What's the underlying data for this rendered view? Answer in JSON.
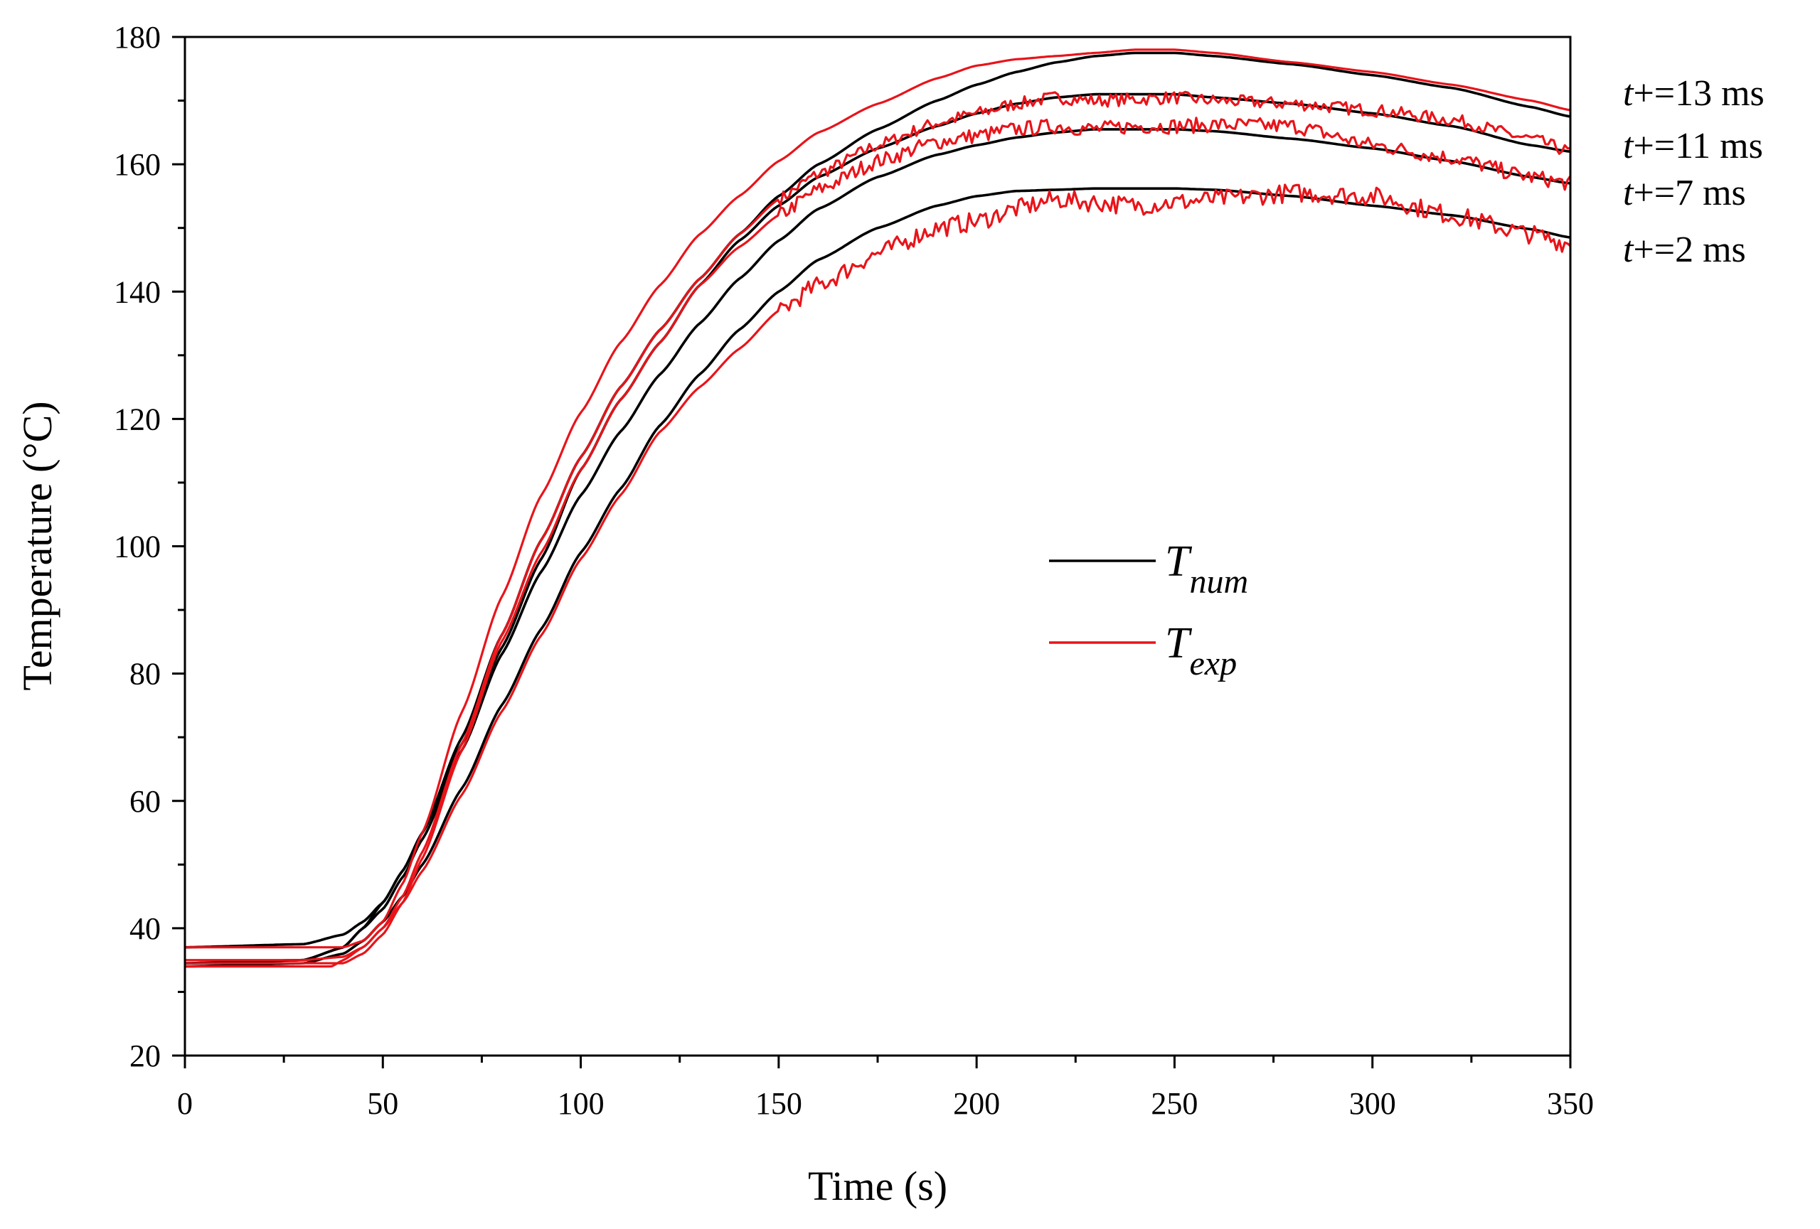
{
  "chart_data": {
    "type": "line",
    "title": "",
    "xlabel": "Time (s)",
    "ylabel": "Temperature (°C)",
    "xlim": [
      0,
      350
    ],
    "ylim": [
      20,
      180
    ],
    "x_ticks": [
      0,
      50,
      100,
      150,
      200,
      250,
      300,
      350
    ],
    "y_ticks": [
      20,
      40,
      60,
      80,
      100,
      120,
      140,
      160,
      180
    ],
    "x_tick_labels": [
      "0",
      "50",
      "100",
      "150",
      "200",
      "250",
      "300",
      "350"
    ],
    "y_tick_labels": [
      "20",
      "40",
      "60",
      "80",
      "100",
      "120",
      "140",
      "160",
      "180"
    ],
    "grid": false,
    "legend": {
      "position": "center-right",
      "entries": [
        {
          "symbol": "T",
          "subscript": "num",
          "color": "#000000"
        },
        {
          "symbol": "T",
          "subscript": "exp",
          "color": "#e8141a"
        }
      ]
    },
    "annotations": [
      {
        "var": "t",
        "text": "+=13 ms"
      },
      {
        "var": "t",
        "text": "+=11 ms"
      },
      {
        "var": "t",
        "text": "+=7 ms"
      },
      {
        "var": "t",
        "text": "+=2 ms"
      }
    ],
    "series": [
      {
        "name": "T_num, t+=13 ms",
        "color": "#000000",
        "noise": 0,
        "x": [
          0,
          30,
          40,
          45,
          50,
          55,
          60,
          70,
          80,
          90,
          100,
          110,
          120,
          130,
          140,
          150,
          160,
          175,
          190,
          200,
          210,
          220,
          230,
          240,
          250,
          260,
          280,
          300,
          320,
          340,
          350
        ],
        "y": [
          37,
          37.5,
          39,
          41,
          44,
          49,
          55,
          70,
          86,
          101,
          114,
          125,
          134,
          142,
          149,
          155,
          160,
          165.5,
          170,
          172.5,
          174.5,
          176,
          177,
          177.5,
          177.5,
          177,
          175.7,
          174,
          172,
          169,
          167.5
        ]
      },
      {
        "name": "T_num, t+=11 ms",
        "color": "#000000",
        "noise": 0,
        "x": [
          0,
          30,
          40,
          45,
          50,
          55,
          60,
          70,
          80,
          90,
          100,
          110,
          120,
          130,
          140,
          150,
          160,
          175,
          190,
          200,
          210,
          220,
          230,
          240,
          250,
          260,
          280,
          300,
          320,
          340,
          350
        ],
        "y": [
          34.5,
          35,
          37,
          40,
          44,
          49,
          55,
          69,
          84,
          98,
          112,
          123,
          132,
          141,
          148,
          153.5,
          158,
          162.5,
          166,
          168,
          169.5,
          170.5,
          171,
          171,
          171,
          170.5,
          169.5,
          168,
          166,
          163,
          162
        ]
      },
      {
        "name": "T_num, t+=7 ms",
        "color": "#000000",
        "noise": 0,
        "x": [
          0,
          30,
          40,
          45,
          50,
          55,
          60,
          70,
          80,
          90,
          100,
          110,
          120,
          130,
          140,
          150,
          160,
          175,
          190,
          200,
          210,
          220,
          230,
          240,
          250,
          260,
          280,
          300,
          320,
          340,
          350
        ],
        "y": [
          34.5,
          35,
          37,
          40,
          43,
          48,
          54,
          68,
          83,
          96,
          108,
          118,
          127,
          135,
          142,
          148,
          153,
          158,
          161.5,
          163,
          164.2,
          165,
          165.5,
          165.5,
          165.5,
          165.2,
          164,
          162.5,
          160.5,
          158,
          157
        ]
      },
      {
        "name": "T_num, t+=2 ms",
        "color": "#000000",
        "noise": 0,
        "x": [
          0,
          30,
          40,
          45,
          50,
          55,
          60,
          70,
          80,
          90,
          100,
          110,
          120,
          130,
          140,
          150,
          160,
          175,
          190,
          200,
          210,
          220,
          230,
          240,
          250,
          260,
          280,
          300,
          320,
          340,
          350
        ],
        "y": [
          34,
          34.5,
          36,
          38,
          41,
          45,
          50,
          62,
          75,
          87,
          99,
          109,
          119,
          127,
          134,
          140,
          145,
          150,
          153.5,
          155,
          155.8,
          156,
          156.2,
          156.2,
          156.2,
          156,
          155,
          153.5,
          152,
          149.8,
          148.5
        ]
      },
      {
        "name": "T_exp, t+=13 ms",
        "color": "#e8141a",
        "noise": 0,
        "x": [
          0,
          30,
          40,
          45,
          50,
          55,
          60,
          70,
          80,
          90,
          100,
          110,
          120,
          130,
          140,
          150,
          160,
          175,
          190,
          200,
          210,
          220,
          230,
          240,
          250,
          260,
          280,
          300,
          320,
          340,
          350
        ],
        "y": [
          37,
          37,
          37,
          38,
          41,
          47,
          55,
          74,
          92,
          108,
          121,
          132,
          141,
          149,
          155,
          160.5,
          165,
          169.5,
          173.5,
          175.5,
          176.5,
          177,
          177.5,
          178,
          178,
          177.5,
          176,
          174.5,
          172.5,
          170,
          168.5
        ]
      },
      {
        "name": "T_exp, t+=11 ms",
        "color": "#e8141a",
        "noise": 1,
        "x": [
          0,
          30,
          40,
          45,
          50,
          55,
          60,
          70,
          80,
          90,
          100,
          110,
          120,
          130,
          140,
          150,
          160,
          175,
          190,
          200,
          210,
          220,
          230,
          240,
          250,
          260,
          280,
          300,
          320,
          340,
          350
        ],
        "y": [
          35,
          35,
          35.5,
          37,
          40,
          45,
          52,
          69,
          86,
          101,
          114,
          125,
          134,
          142,
          149,
          154.5,
          158.5,
          163,
          166.5,
          168,
          169.5,
          170.5,
          170,
          170.2,
          170.5,
          170,
          169.5,
          168.5,
          167,
          164,
          162
        ]
      },
      {
        "name": "T_exp, t+=7 ms",
        "color": "#e8141a",
        "noise": 1.2,
        "x": [
          0,
          30,
          40,
          45,
          50,
          55,
          60,
          70,
          80,
          90,
          100,
          110,
          120,
          130,
          140,
          150,
          160,
          175,
          190,
          200,
          210,
          220,
          230,
          240,
          250,
          260,
          280,
          300,
          320,
          340,
          350
        ],
        "y": [
          34.5,
          34.5,
          34.5,
          36,
          39,
          44,
          51,
          68,
          85,
          99,
          112,
          123,
          132,
          141,
          147,
          152,
          156,
          160.5,
          163.5,
          164.5,
          165.5,
          166,
          165.5,
          166,
          166,
          166.2,
          166,
          163,
          161,
          158,
          157
        ]
      },
      {
        "name": "T_exp, t+=2 ms",
        "color": "#e8141a",
        "noise": 1.5,
        "x": [
          0,
          30,
          37,
          40,
          45,
          50,
          55,
          60,
          70,
          80,
          90,
          100,
          110,
          120,
          130,
          140,
          150,
          160,
          175,
          190,
          200,
          210,
          220,
          230,
          240,
          250,
          260,
          280,
          300,
          320,
          340,
          350
        ],
        "y": [
          34,
          34,
          34,
          35,
          37,
          40,
          44,
          49,
          61,
          74,
          86,
          98,
          108,
          118,
          125,
          131,
          137,
          141,
          146,
          150,
          151,
          153,
          154.5,
          154,
          153.5,
          154,
          154.5,
          155.5,
          155,
          152,
          149,
          147.5
        ]
      }
    ]
  }
}
